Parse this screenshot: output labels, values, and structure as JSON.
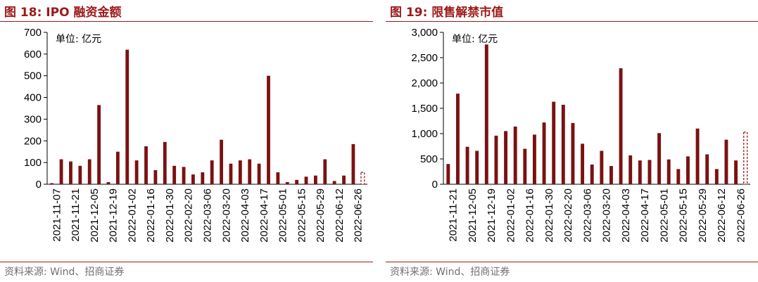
{
  "chart_data": [
    {
      "type": "bar",
      "title": "图 18:  IPO 融资金额",
      "unit_label": "单位:  亿元",
      "source": "资料来源:  Wind、招商证券",
      "ylim": [
        0,
        700
      ],
      "yticks": [
        0,
        100,
        200,
        300,
        400,
        500,
        600,
        700
      ],
      "ytick_labels": [
        "0",
        "100",
        "200",
        "300",
        "400",
        "500",
        "600",
        "700"
      ],
      "xtick_labels": [
        "2021-11-07",
        "2021-11-21",
        "2021-12-05",
        "2021-12-19",
        "2022-01-02",
        "2022-01-16",
        "2022-01-30",
        "2022-02-20",
        "2022-03-06",
        "2022-03-20",
        "2022-04-03",
        "2022-04-17",
        "2022-05-01",
        "2022-05-15",
        "2022-05-29",
        "2022-06-12",
        "2022-06-26"
      ],
      "values": [
        5,
        115,
        105,
        85,
        115,
        365,
        10,
        150,
        620,
        110,
        175,
        65,
        195,
        85,
        80,
        45,
        55,
        110,
        205,
        95,
        110,
        115,
        95,
        500,
        55,
        10,
        20,
        35,
        40,
        115,
        15,
        40,
        185,
        55
      ],
      "last_bar_style": "dashed",
      "bar_color": "#7a1212",
      "title_color": "#9c1a1a"
    },
    {
      "type": "bar",
      "title": "图 19:  限售解禁市值",
      "unit_label": "单位:  亿元",
      "source": "资料来源:  Wind、招商证券",
      "ylim": [
        0,
        3000
      ],
      "yticks": [
        0,
        500,
        1000,
        1500,
        2000,
        2500,
        3000
      ],
      "ytick_labels": [
        "0",
        "500",
        "1,000",
        "1,500",
        "2,000",
        "2,500",
        "3,000"
      ],
      "xtick_labels": [
        "2021-11-21",
        "2021-12-05",
        "2021-12-19",
        "2022-01-02",
        "2022-01-16",
        "2022-01-30",
        "2022-02-20",
        "2022-03-06",
        "2022-03-20",
        "2022-04-03",
        "2022-04-17",
        "2022-05-01",
        "2022-05-15",
        "2022-05-29",
        "2022-06-12",
        "2022-06-26"
      ],
      "values": [
        400,
        1790,
        740,
        660,
        2760,
        960,
        1050,
        1140,
        700,
        980,
        1220,
        1630,
        1570,
        1210,
        800,
        390,
        660,
        360,
        2290,
        570,
        470,
        480,
        1010,
        490,
        300,
        550,
        1100,
        590,
        300,
        880,
        470,
        1030
      ],
      "last_bar_style": "dashed",
      "bar_color": "#7a1212",
      "title_color": "#9c1a1a"
    }
  ]
}
